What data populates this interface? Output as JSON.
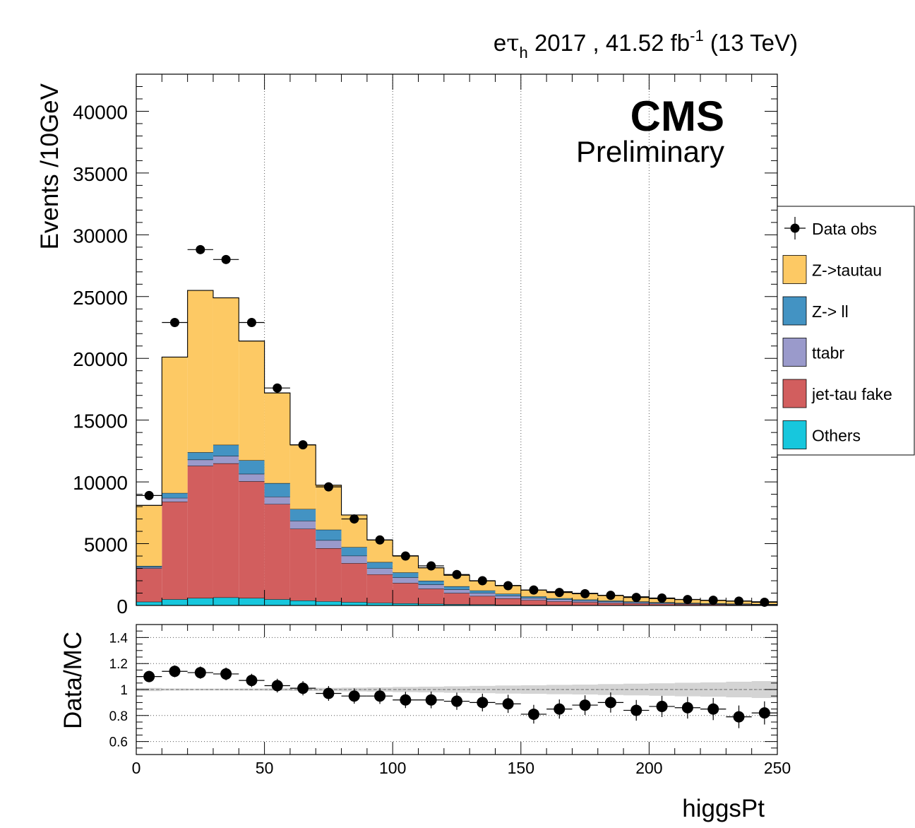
{
  "header": {
    "channel_e": "e",
    "channel_tau": "τ",
    "channel_sub": "h",
    "rest": " 2017 , 41.52 fb",
    "sup": "-1",
    "energy": " (13 TeV)"
  },
  "cms_label": "CMS",
  "preliminary_label": "Preliminary",
  "colors": {
    "ztautau": "#fdc964",
    "zll": "#4393c3",
    "ttbar": "#9a9acb",
    "fake": "#d25e5e",
    "others": "#17c7dd",
    "data": "#000000"
  },
  "chart_data": [
    {
      "type": "bar",
      "stacked": true,
      "ylabel": "Events /10GeV",
      "xlim": [
        0,
        250
      ],
      "ylim": [
        0,
        43000
      ],
      "x_ticks": [
        0,
        50,
        100,
        150,
        200,
        250
      ],
      "y_ticks": [
        0,
        5000,
        10000,
        15000,
        20000,
        25000,
        30000,
        35000,
        40000
      ],
      "y_tick_labels": [
        "0",
        "5000",
        "10000",
        "15000",
        "20000",
        "25000",
        "30000",
        "35000",
        "40000"
      ],
      "grid": "vertical dotted",
      "legend_position": "right",
      "bin_width": 10,
      "x": [
        5,
        15,
        25,
        35,
        45,
        55,
        65,
        75,
        85,
        95,
        105,
        115,
        125,
        135,
        145,
        155,
        165,
        175,
        185,
        195,
        205,
        215,
        225,
        235,
        245
      ],
      "series": [
        {
          "name": "Others",
          "color_key": "others",
          "values": [
            300,
            500,
            600,
            650,
            600,
            500,
            400,
            330,
            270,
            210,
            170,
            130,
            100,
            80,
            60,
            50,
            40,
            30,
            25,
            20,
            15,
            12,
            10,
            8,
            6
          ]
        },
        {
          "name": "jet-tau fake",
          "color_key": "fake",
          "values": [
            2700,
            7900,
            10700,
            10850,
            9450,
            7700,
            5800,
            4300,
            3150,
            2300,
            1650,
            1220,
            900,
            680,
            510,
            380,
            290,
            230,
            175,
            140,
            115,
            90,
            70,
            55,
            45
          ]
        },
        {
          "name": "ttabr",
          "color_key": "ttbar",
          "values": [
            100,
            300,
            500,
            600,
            600,
            600,
            650,
            650,
            600,
            500,
            450,
            350,
            300,
            250,
            220,
            180,
            150,
            130,
            110,
            90,
            70,
            55,
            45,
            40,
            30
          ]
        },
        {
          "name": "Z-> ll",
          "color_key": "zll",
          "values": [
            100,
            400,
            600,
            900,
            1100,
            1100,
            950,
            850,
            700,
            500,
            400,
            300,
            250,
            200,
            150,
            120,
            100,
            90,
            80,
            70,
            60,
            50,
            45,
            40,
            35
          ]
        },
        {
          "name": "Z->tautau",
          "color_key": "ztautau",
          "values": [
            4900,
            11000,
            13100,
            11900,
            9650,
            7300,
            5200,
            3600,
            2600,
            1790,
            1350,
            1050,
            900,
            780,
            680,
            520,
            540,
            500,
            410,
            380,
            300,
            280,
            240,
            220,
            180
          ]
        }
      ],
      "data_series": {
        "name": "Data obs",
        "values": [
          8900,
          22900,
          28800,
          28000,
          22900,
          17600,
          13000,
          9600,
          7000,
          5300,
          4000,
          3200,
          2500,
          2000,
          1600,
          1250,
          1050,
          950,
          820,
          650,
          600,
          480,
          420,
          350,
          260
        ]
      }
    },
    {
      "type": "scatter",
      "ylabel": "Data/MC",
      "xlabel": "higgsPt",
      "xlim": [
        0,
        250
      ],
      "ylim": [
        0.5,
        1.5
      ],
      "x_ticks": [
        0,
        50,
        100,
        150,
        200,
        250
      ],
      "y_ticks": [
        0.6,
        0.8,
        1,
        1.2,
        1.4
      ],
      "y_tick_labels": [
        "0.6",
        "0.8",
        "1",
        "1.2",
        "1.4"
      ],
      "grid": "horizontal dotted",
      "x": [
        5,
        15,
        25,
        35,
        45,
        55,
        65,
        75,
        85,
        95,
        105,
        115,
        125,
        135,
        145,
        155,
        165,
        175,
        185,
        195,
        205,
        215,
        225,
        235,
        245
      ],
      "ratio": [
        1.1,
        1.14,
        1.13,
        1.12,
        1.07,
        1.03,
        1.01,
        0.97,
        0.95,
        0.95,
        0.92,
        0.92,
        0.91,
        0.9,
        0.89,
        0.81,
        0.85,
        0.88,
        0.9,
        0.84,
        0.87,
        0.86,
        0.85,
        0.79,
        0.82
      ],
      "uncertainty": [
        0.012,
        0.008,
        0.007,
        0.007,
        0.008,
        0.009,
        0.011,
        0.013,
        0.015,
        0.017,
        0.02,
        0.022,
        0.025,
        0.028,
        0.031,
        0.033,
        0.036,
        0.038,
        0.042,
        0.045,
        0.048,
        0.052,
        0.055,
        0.06,
        0.065
      ]
    }
  ],
  "legend": {
    "items": [
      {
        "label": "Data obs",
        "kind": "marker",
        "color_key": "data"
      },
      {
        "label": "Z->tautau",
        "kind": "box",
        "color_key": "ztautau"
      },
      {
        "label": "Z-> ll",
        "kind": "box",
        "color_key": "zll"
      },
      {
        "label": "ttabr",
        "kind": "box",
        "color_key": "ttbar"
      },
      {
        "label": "jet-tau fake",
        "kind": "box",
        "color_key": "fake"
      },
      {
        "label": "Others",
        "kind": "box",
        "color_key": "others"
      }
    ]
  }
}
